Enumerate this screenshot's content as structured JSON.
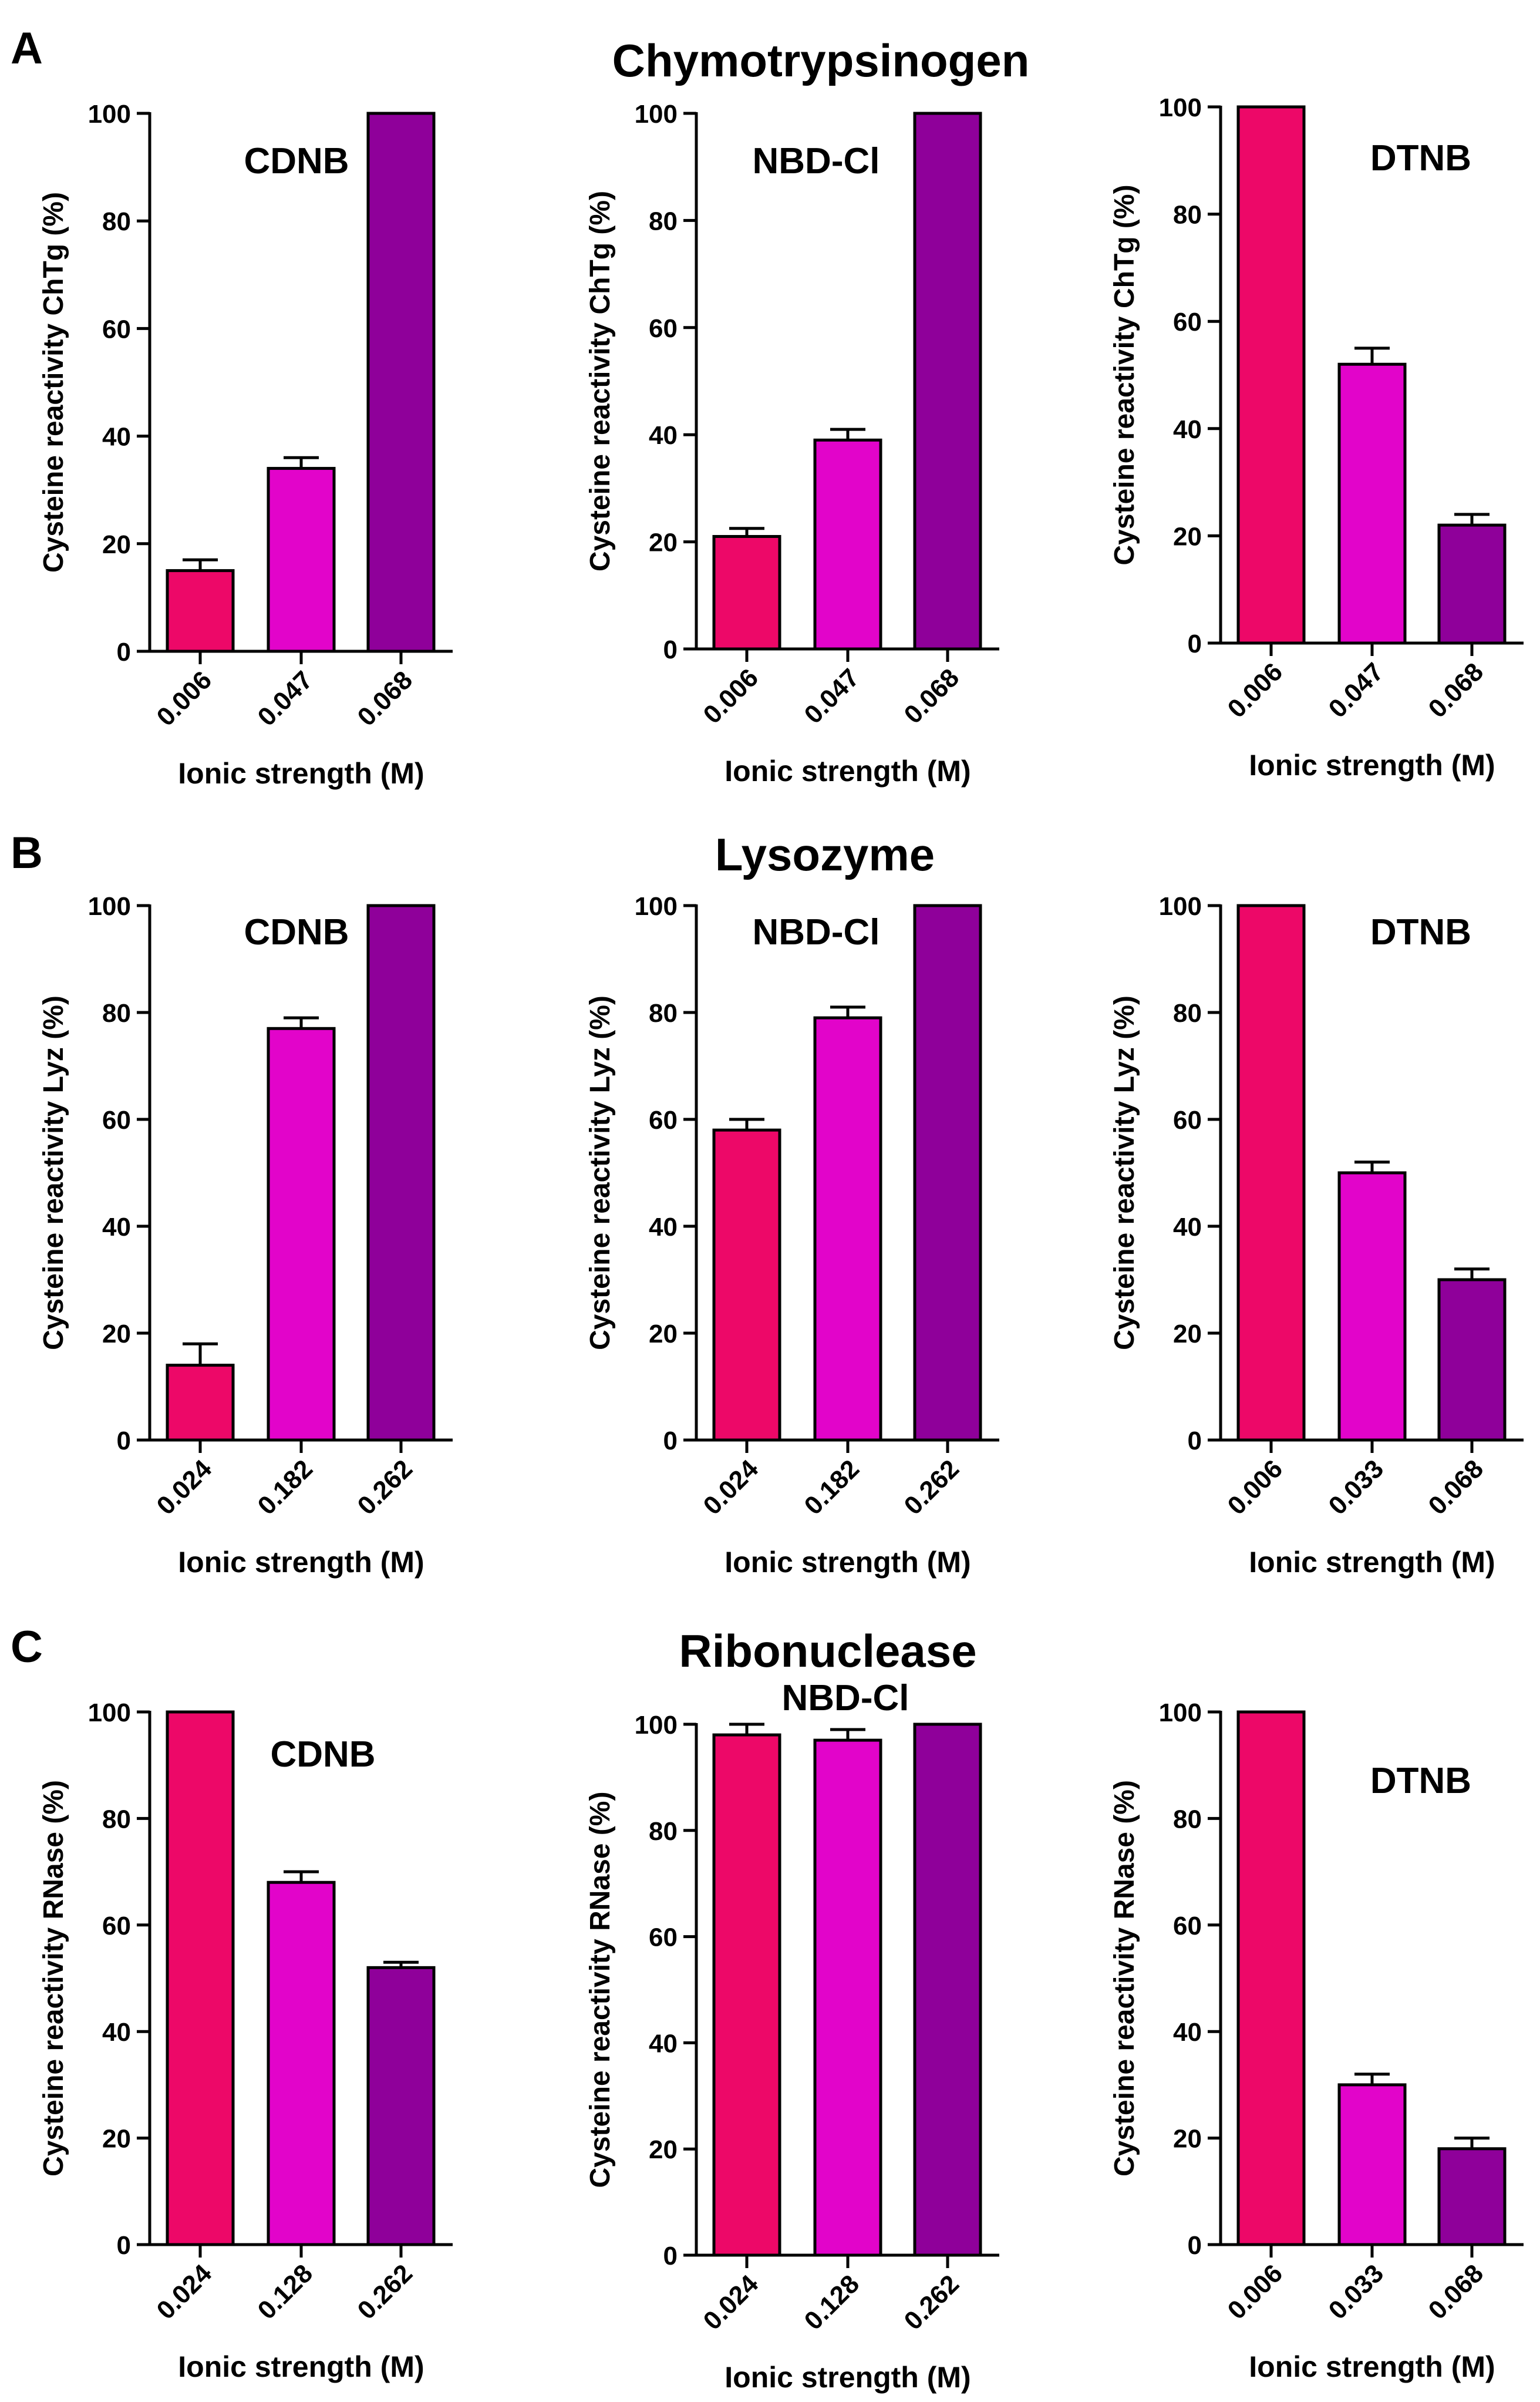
{
  "figure": {
    "rows": [
      {
        "panel_letter": "A",
        "protein": "Chymotrypsinogen"
      },
      {
        "panel_letter": "B",
        "protein": "Lysozyme"
      },
      {
        "panel_letter": "C",
        "protein": "Ribonuclease"
      }
    ]
  },
  "colors": {
    "bar1": "#ed0868",
    "bar2": "#e204ca",
    "bar3": "#8f009a",
    "axis": "#000000"
  },
  "chart_data": [
    {
      "type": "bar",
      "row": 0,
      "col": 0,
      "title": "CDNB",
      "categories": [
        "0.006",
        "0.047",
        "0.068"
      ],
      "values": [
        15,
        34,
        100
      ],
      "errors": [
        2,
        2,
        0
      ],
      "ylabel": "Cysteine reactivity ChTg (%)",
      "xlabel": "Ionic strength (M)",
      "ylim": [
        0,
        100
      ],
      "yticks": [
        0,
        20,
        40,
        60,
        80,
        100
      ]
    },
    {
      "type": "bar",
      "row": 0,
      "col": 1,
      "title": "NBD-Cl",
      "categories": [
        "0.006",
        "0.047",
        "0.068"
      ],
      "values": [
        21,
        39,
        100
      ],
      "errors": [
        1.5,
        2,
        0
      ],
      "ylabel": "Cysteine reactivity ChTg (%)",
      "xlabel": "Ionic strength (M)",
      "ylim": [
        0,
        100
      ],
      "yticks": [
        0,
        20,
        40,
        60,
        80,
        100
      ]
    },
    {
      "type": "bar",
      "row": 0,
      "col": 2,
      "title": "DTNB",
      "categories": [
        "0.006",
        "0.047",
        "0.068"
      ],
      "values": [
        100,
        52,
        22
      ],
      "errors": [
        0,
        3,
        2
      ],
      "ylabel": "Cysteine reactivity ChTg (%)",
      "xlabel": "Ionic strength (M)",
      "ylim": [
        0,
        100
      ],
      "yticks": [
        0,
        20,
        40,
        60,
        80,
        100
      ]
    },
    {
      "type": "bar",
      "row": 1,
      "col": 0,
      "title": "CDNB",
      "categories": [
        "0.024",
        "0.182",
        "0.262"
      ],
      "values": [
        14,
        77,
        100
      ],
      "errors": [
        4,
        2,
        0
      ],
      "ylabel": "Cysteine reactivity Lyz (%)",
      "xlabel": "Ionic strength (M)",
      "ylim": [
        0,
        100
      ],
      "yticks": [
        0,
        20,
        40,
        60,
        80,
        100
      ]
    },
    {
      "type": "bar",
      "row": 1,
      "col": 1,
      "title": "NBD-Cl",
      "categories": [
        "0.024",
        "0.182",
        "0.262"
      ],
      "values": [
        58,
        79,
        100
      ],
      "errors": [
        2,
        2,
        0
      ],
      "ylabel": "Cysteine reactivity Lyz (%)",
      "xlabel": "Ionic strength (M)",
      "ylim": [
        0,
        100
      ],
      "yticks": [
        0,
        20,
        40,
        60,
        80,
        100
      ]
    },
    {
      "type": "bar",
      "row": 1,
      "col": 2,
      "title": "DTNB",
      "categories": [
        "0.006",
        "0.033",
        "0.068"
      ],
      "values": [
        100,
        50,
        30
      ],
      "errors": [
        0,
        2,
        2
      ],
      "ylabel": "Cysteine reactivity Lyz (%)",
      "xlabel": "Ionic strength (M)",
      "ylim": [
        0,
        100
      ],
      "yticks": [
        0,
        20,
        40,
        60,
        80,
        100
      ]
    },
    {
      "type": "bar",
      "row": 2,
      "col": 0,
      "title": "CDNB",
      "categories": [
        "0.024",
        "0.128",
        "0.262"
      ],
      "values": [
        100,
        68,
        52
      ],
      "errors": [
        0,
        2,
        1
      ],
      "ylabel": "Cysteine reactivity RNase (%)",
      "xlabel": "Ionic strength (M)",
      "ylim": [
        0,
        100
      ],
      "yticks": [
        0,
        20,
        40,
        60,
        80,
        100
      ]
    },
    {
      "type": "bar",
      "row": 2,
      "col": 1,
      "title": "NBD-Cl",
      "categories": [
        "0.024",
        "0.128",
        "0.262"
      ],
      "values": [
        98,
        97,
        100
      ],
      "errors": [
        2,
        2,
        0
      ],
      "ylabel": "Cysteine reactivity RNase (%)",
      "xlabel": "Ionic strength (M)",
      "ylim": [
        0,
        100
      ],
      "yticks": [
        0,
        20,
        40,
        60,
        80,
        100
      ]
    },
    {
      "type": "bar",
      "row": 2,
      "col": 2,
      "title": "DTNB",
      "categories": [
        "0.006",
        "0.033",
        "0.068"
      ],
      "values": [
        100,
        30,
        18
      ],
      "errors": [
        0,
        2,
        2
      ],
      "ylabel": "Cysteine reactivity RNase (%)",
      "xlabel": "Ionic strength (M)",
      "ylim": [
        0,
        100
      ],
      "yticks": [
        0,
        20,
        40,
        60,
        80,
        100
      ]
    }
  ]
}
